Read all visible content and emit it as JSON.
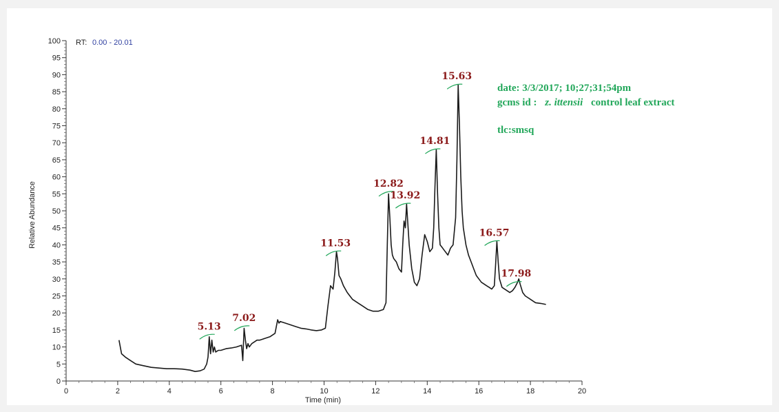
{
  "chart_data": {
    "type": "line",
    "rt_label": "RT:",
    "rt_range": "0.00 - 20.01",
    "xlabel": "Time (min)",
    "ylabel": "Relative Abundance",
    "xlim": [
      0,
      20
    ],
    "ylim": [
      0,
      100
    ],
    "x_ticks": [
      "0",
      "2",
      "4",
      "6",
      "8",
      "10",
      "12",
      "14",
      "16",
      "18",
      "20"
    ],
    "y_ticks": [
      "0",
      "5",
      "10",
      "15",
      "20",
      "25",
      "30",
      "35",
      "40",
      "45",
      "50",
      "55",
      "60",
      "65",
      "70",
      "75",
      "80",
      "85",
      "90",
      "95",
      "100"
    ],
    "peak_labels": [
      {
        "text": "5.13",
        "x": 5.6,
        "y": 13.5
      },
      {
        "text": "7.02",
        "x": 6.95,
        "y": 16
      },
      {
        "text": "11.53",
        "x": 10.5,
        "y": 38
      },
      {
        "text": "12.82",
        "x": 12.55,
        "y": 55.5
      },
      {
        "text": "13.92",
        "x": 13.2,
        "y": 52
      },
      {
        "text": "14.81",
        "x": 14.35,
        "y": 68
      },
      {
        "text": "15.63",
        "x": 15.2,
        "y": 87
      },
      {
        "text": "16.57",
        "x": 16.65,
        "y": 41
      },
      {
        "text": "17.98",
        "x": 17.5,
        "y": 29
      }
    ],
    "annotations": {
      "date": "date: 3/3/2017; 10;27;31;54pm",
      "gcms_prefix": "gcms id :",
      "gcms_species": "z. ittensii",
      "gcms_suffix": "control leaf extract",
      "tlc": "tlc:smsq"
    },
    "series": [
      {
        "x": [
          2.05,
          2.15,
          2.3,
          2.5,
          2.7,
          3.0,
          3.3,
          3.6,
          3.9,
          4.2,
          4.5,
          4.8,
          5.0,
          5.2,
          5.35,
          5.45,
          5.5,
          5.55,
          5.6,
          5.65,
          5.7,
          5.75,
          5.8,
          5.9,
          6.0,
          6.2,
          6.4,
          6.6,
          6.8,
          6.85,
          6.9,
          6.95,
          7.0,
          7.05,
          7.1,
          7.2,
          7.3,
          7.4,
          7.5,
          7.7,
          7.9,
          8.1,
          8.2,
          8.25,
          8.3,
          8.5,
          8.7,
          8.9,
          9.1,
          9.3,
          9.5,
          9.7,
          9.9,
          10.05,
          10.15,
          10.25,
          10.35,
          10.42,
          10.48,
          10.52,
          10.58,
          10.65,
          10.75,
          10.9,
          11.1,
          11.3,
          11.5,
          11.7,
          11.9,
          12.1,
          12.3,
          12.4,
          12.45,
          12.5,
          12.55,
          12.6,
          12.65,
          12.7,
          12.8,
          12.9,
          13.0,
          13.05,
          13.1,
          13.15,
          13.2,
          13.25,
          13.3,
          13.4,
          13.5,
          13.6,
          13.7,
          13.8,
          13.9,
          14.0,
          14.1,
          14.2,
          14.25,
          14.3,
          14.35,
          14.4,
          14.45,
          14.5,
          14.6,
          14.7,
          14.8,
          14.9,
          15.0,
          15.1,
          15.15,
          15.2,
          15.25,
          15.3,
          15.35,
          15.4,
          15.5,
          15.6,
          15.7,
          15.8,
          15.9,
          16.0,
          16.1,
          16.2,
          16.3,
          16.4,
          16.5,
          16.6,
          16.65,
          16.7,
          16.75,
          16.8,
          16.9,
          17.0,
          17.1,
          17.2,
          17.3,
          17.4,
          17.5,
          17.55,
          17.6,
          17.7,
          17.8,
          17.9,
          18.0,
          18.1,
          18.2,
          18.4,
          18.6
        ],
        "y": [
          12,
          8,
          7,
          6,
          5,
          4.5,
          4,
          3.8,
          3.6,
          3.6,
          3.5,
          3.2,
          2.8,
          3,
          3.5,
          5,
          7,
          13,
          8,
          12,
          8.5,
          10,
          8.5,
          9,
          9,
          9.5,
          9.7,
          10,
          10.5,
          6,
          15.5,
          12,
          9.5,
          11,
          10,
          11,
          11.5,
          12,
          12,
          12.5,
          13,
          14,
          18,
          17,
          17.5,
          17,
          16.5,
          16,
          15.5,
          15.3,
          15,
          14.8,
          15,
          15.5,
          22,
          28,
          27,
          32,
          38,
          36,
          31,
          30,
          28,
          26,
          24,
          23,
          22,
          21,
          20.5,
          20.5,
          21,
          23,
          40,
          55,
          48,
          40,
          37,
          36,
          35,
          33,
          32,
          40,
          47,
          45,
          52,
          46,
          40,
          33,
          29,
          28,
          30,
          37,
          43,
          41,
          38,
          39,
          45,
          57,
          68,
          55,
          45,
          40,
          39,
          38,
          37,
          39,
          40,
          48,
          65,
          87,
          75,
          60,
          50,
          45,
          40,
          37,
          35,
          33,
          31,
          30,
          29,
          28.5,
          28,
          27.5,
          27,
          28,
          34,
          41,
          35,
          30,
          27.5,
          27,
          26.5,
          26,
          26.5,
          27.5,
          29,
          30,
          28.5,
          26,
          25,
          24.5,
          24,
          23.5,
          23,
          22.8,
          22.5
        ]
      }
    ]
  }
}
